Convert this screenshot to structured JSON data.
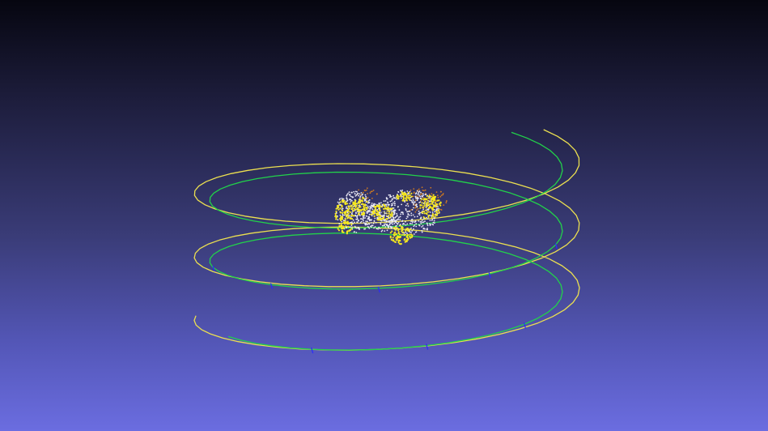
{
  "viewer": {
    "background_top": "#060610",
    "background_bottom": "#6b6de0"
  },
  "colors": {
    "trajectory_estimated": "#22d24a",
    "trajectory_ground_truth": "#ece050",
    "camera_ticks": "#2a2aff",
    "points_white": "#e8e8f4",
    "points_yellow": "#f6e81e",
    "points_orange": "#d07a20"
  },
  "scene": {
    "trajectories": [
      "estimated",
      "ground-truth"
    ],
    "point_cloud_groups": [
      "white",
      "yellow",
      "orange"
    ]
  }
}
